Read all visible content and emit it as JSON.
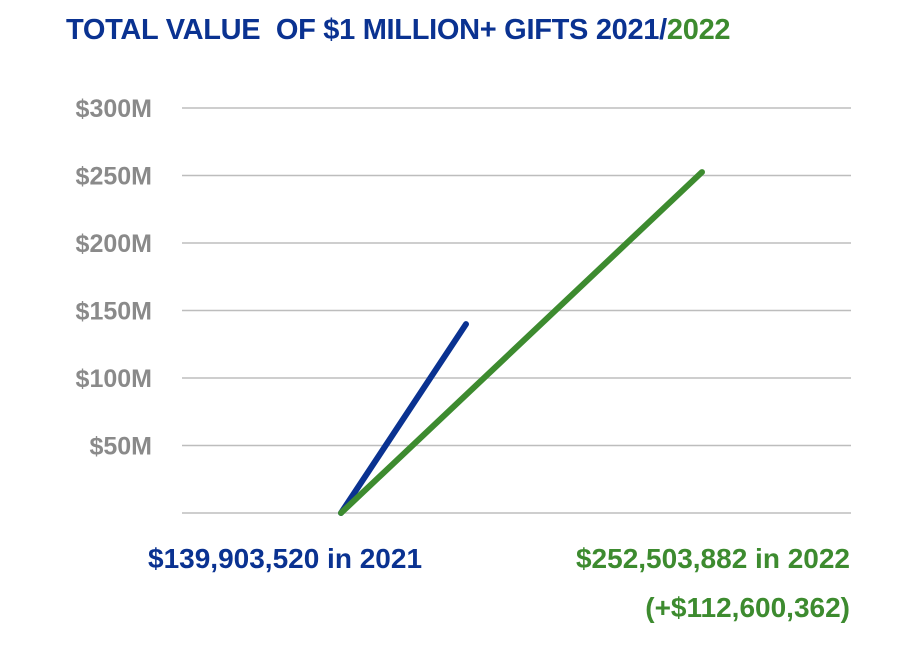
{
  "title": {
    "main": "TOTAL VALUE  OF $1 MILLION+ GIFTS 2021/",
    "highlight": "2022"
  },
  "chart_data": {
    "type": "line",
    "title": "TOTAL VALUE  OF $1 MILLION+ GIFTS 2021/2022",
    "ylim": [
      0,
      300
    ],
    "yticks": [
      {
        "value": 50,
        "label": "$50M"
      },
      {
        "value": 100,
        "label": "$100M"
      },
      {
        "value": 150,
        "label": "$150M"
      },
      {
        "value": 200,
        "label": "$200M"
      },
      {
        "value": 250,
        "label": "$250M"
      },
      {
        "value": 300,
        "label": "$300M"
      }
    ],
    "grid": true,
    "series": [
      {
        "key": "2021",
        "color": "#0a3291",
        "x": [
          0,
          1
        ],
        "values": [
          0,
          139.9
        ]
      },
      {
        "key": "2022",
        "color": "#3d8b2f",
        "x": [
          0,
          1
        ],
        "values": [
          0,
          252.5
        ]
      }
    ],
    "annotations": {
      "label_2021": "$139,903,520 in 2021",
      "label_2022": "$252,503,882 in 2022",
      "difference": "(+$112,600,362)"
    }
  },
  "colors": {
    "blue": "#0a3291",
    "green": "#3d8b2f",
    "grid": "#bdbdbd",
    "tick_text": "#8a8a8a"
  }
}
